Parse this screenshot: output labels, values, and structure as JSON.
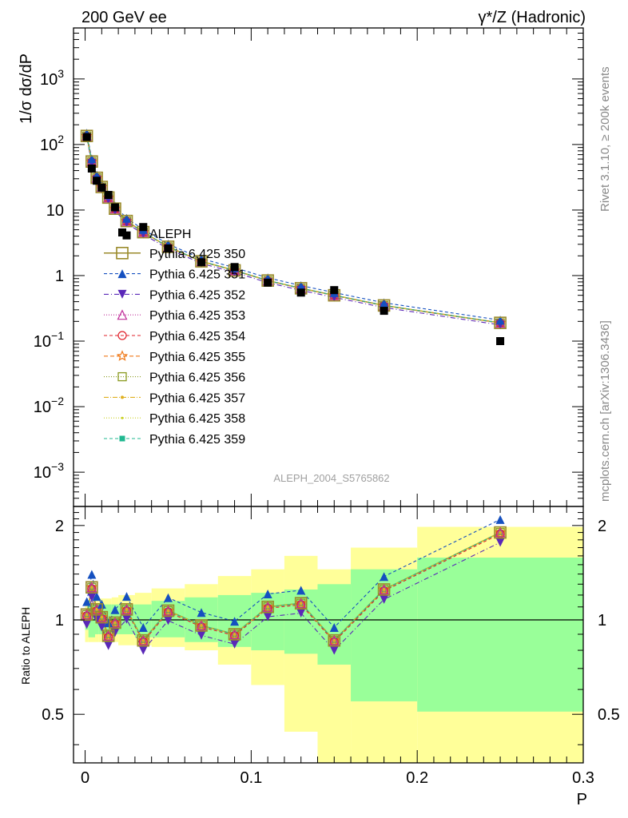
{
  "header": {
    "left": "200 GeV ee",
    "right": "γ*/Z (Hadronic)"
  },
  "side_notes": {
    "rivet": "Rivet 3.1.10, ≥ 200k events",
    "mcplots": "mcplots.cern.ch [arXiv:1306.3436]"
  },
  "watermark": "ALEPH_2004_S5765862",
  "chart_data": {
    "type": "scatter",
    "ylabel_top": "1/σ dσ/dP",
    "ylabel_bottom": "Ratio to ALEPH",
    "xlabel": "P",
    "xlim": [
      -0.007,
      0.3
    ],
    "top_ylim": [
      0.0003,
      6000
    ],
    "top_yscale": "log",
    "bottom_ylim": [
      0.35,
      2.3
    ],
    "bottom_yscale": "log",
    "top_yticks": [
      {
        "value": 0.001,
        "base": "10",
        "exp": "−3"
      },
      {
        "value": 0.01,
        "base": "10",
        "exp": "−2"
      },
      {
        "value": 0.1,
        "base": "10",
        "exp": "−1"
      },
      {
        "value": 1,
        "base": "1",
        "exp": ""
      },
      {
        "value": 10,
        "base": "10",
        "exp": ""
      },
      {
        "value": 100,
        "base": "10",
        "exp": "2"
      },
      {
        "value": 1000,
        "base": "10",
        "exp": "3"
      }
    ],
    "xticks": [
      {
        "value": 0,
        "label": "0"
      },
      {
        "value": 0.1,
        "label": "0.1"
      },
      {
        "value": 0.2,
        "label": "0.2"
      },
      {
        "value": 0.3,
        "label": "0.3"
      }
    ],
    "bottom_yticks": [
      {
        "value": 0.5,
        "label": "0.5"
      },
      {
        "value": 1,
        "label": "1"
      },
      {
        "value": 2,
        "label": "2"
      }
    ],
    "x": [
      0.001,
      0.004,
      0.007,
      0.01,
      0.014,
      0.018,
      0.025,
      0.035,
      0.05,
      0.07,
      0.09,
      0.11,
      0.13,
      0.15,
      0.18,
      0.25
    ],
    "bins": [
      [
        0,
        0.002
      ],
      [
        0.002,
        0.006
      ],
      [
        0.006,
        0.008
      ],
      [
        0.008,
        0.012
      ],
      [
        0.012,
        0.016
      ],
      [
        0.016,
        0.02
      ],
      [
        0.02,
        0.03
      ],
      [
        0.03,
        0.04
      ],
      [
        0.04,
        0.06
      ],
      [
        0.06,
        0.08
      ],
      [
        0.08,
        0.1
      ],
      [
        0.1,
        0.12
      ],
      [
        0.12,
        0.14
      ],
      [
        0.14,
        0.16
      ],
      [
        0.16,
        0.2
      ],
      [
        0.2,
        0.3
      ]
    ],
    "band_green": [
      [
        0.93,
        1.08
      ],
      [
        0.88,
        1.12
      ],
      [
        0.9,
        1.12
      ],
      [
        0.9,
        1.12
      ],
      [
        0.9,
        1.12
      ],
      [
        0.9,
        1.12
      ],
      [
        0.9,
        1.12
      ],
      [
        0.88,
        1.12
      ],
      [
        0.88,
        1.15
      ],
      [
        0.85,
        1.18
      ],
      [
        0.82,
        1.2
      ],
      [
        0.8,
        1.22
      ],
      [
        0.78,
        1.25
      ],
      [
        0.72,
        1.3
      ],
      [
        0.55,
        1.45
      ],
      [
        0.51,
        1.58
      ]
    ],
    "band_yellow": [
      [
        0.85,
        1.15
      ],
      [
        0.85,
        1.15
      ],
      [
        0.85,
        1.17
      ],
      [
        0.85,
        1.17
      ],
      [
        0.85,
        1.17
      ],
      [
        0.85,
        1.18
      ],
      [
        0.83,
        1.2
      ],
      [
        0.83,
        1.22
      ],
      [
        0.82,
        1.26
      ],
      [
        0.8,
        1.3
      ],
      [
        0.72,
        1.38
      ],
      [
        0.62,
        1.45
      ],
      [
        0.44,
        1.6
      ],
      [
        0.35,
        1.45
      ],
      [
        0.35,
        1.7
      ],
      [
        0.35,
        1.98
      ]
    ],
    "data_series": {
      "name": "ALEPH",
      "values": [
        130,
        43,
        28,
        22,
        17,
        11,
        4.1,
        5.5,
        2.6,
        1.6,
        1.35,
        0.78,
        0.55,
        0.6,
        0.29,
        0.1
      ]
    },
    "mc_values": [
      135,
      55,
      31,
      22.5,
      15.5,
      10.5,
      6.8,
      4.6,
      2.75,
      1.65,
      1.2,
      0.84,
      0.64,
      0.5,
      0.35,
      0.19
    ],
    "ratio_base": [
      1.04,
      1.27,
      1.08,
      1.02,
      0.89,
      0.98,
      1.08,
      0.86,
      1.07,
      0.96,
      0.9,
      1.1,
      1.13,
      0.86,
      1.25,
      1.9
    ],
    "series": [
      {
        "name": "Pythia 6.425 350",
        "color": "#9a8a2a",
        "marker": "square-open",
        "dash": "",
        "size": 14,
        "factor": 1.0
      },
      {
        "name": "Pythia 6.425 351",
        "color": "#1550c0",
        "marker": "triangle-up",
        "dash": "4,3",
        "size": 11,
        "factor": 1.1
      },
      {
        "name": "Pythia 6.425 352",
        "color": "#5a28b8",
        "marker": "triangle-down",
        "dash": "6,3,1,3",
        "size": 11,
        "factor": 0.93
      },
      {
        "name": "Pythia 6.425 353",
        "color": "#c0309a",
        "marker": "triangle-open",
        "dash": "1,2",
        "size": 11,
        "factor": 1.0
      },
      {
        "name": "Pythia 6.425 354",
        "color": "#e0202a",
        "marker": "circle-open",
        "dash": "4,3",
        "size": 10,
        "factor": 0.99
      },
      {
        "name": "Pythia 6.425 355",
        "color": "#f07a1a",
        "marker": "star-open",
        "dash": "5,3",
        "size": 12,
        "factor": 1.0
      },
      {
        "name": "Pythia 6.425 356",
        "color": "#8a9a20",
        "marker": "square-open-small",
        "dash": "1,2",
        "size": 10,
        "factor": 1.0
      },
      {
        "name": "Pythia 6.425 357",
        "color": "#e0b020",
        "marker": "dot",
        "dash": "6,2,1,2",
        "size": 4,
        "factor": 1.0
      },
      {
        "name": "Pythia 6.425 358",
        "color": "#c8d020",
        "marker": "dot-small",
        "dash": "1,2",
        "size": 3,
        "factor": 1.0
      },
      {
        "name": "Pythia 6.425 359",
        "color": "#20b890",
        "marker": "square-filled",
        "dash": "4,3",
        "size": 7,
        "factor": 1.0
      }
    ]
  }
}
